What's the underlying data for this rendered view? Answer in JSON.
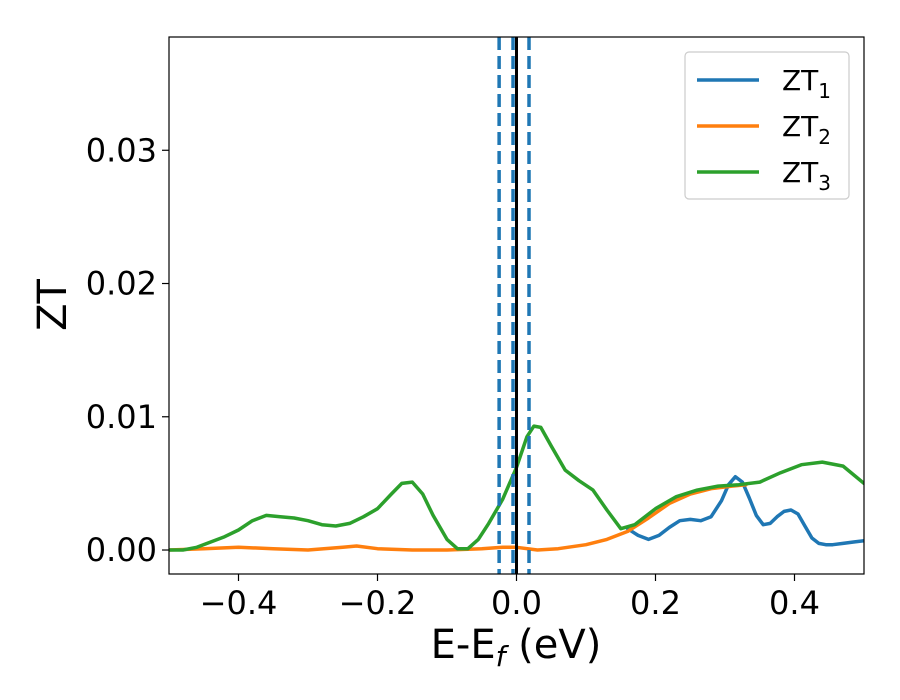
{
  "chart_data": {
    "type": "line",
    "xlabel": "E-E",
    "xlabel_sub": "f",
    "xlabel_unit": " (eV)",
    "ylabel": "ZT",
    "xlim": [
      -0.5,
      0.5
    ],
    "ylim": [
      -0.0018,
      0.0385
    ],
    "x_ticks": [
      {
        "value": -0.4,
        "label": "−0.4"
      },
      {
        "value": -0.2,
        "label": "−0.2"
      },
      {
        "value": 0.0,
        "label": "0.0"
      },
      {
        "value": 0.2,
        "label": "0.2"
      },
      {
        "value": 0.4,
        "label": "0.4"
      }
    ],
    "y_ticks": [
      {
        "value": 0.0,
        "label": "0.00"
      },
      {
        "value": 0.01,
        "label": "0.01"
      },
      {
        "value": 0.02,
        "label": "0.02"
      },
      {
        "value": 0.03,
        "label": "0.03"
      }
    ],
    "grid": false,
    "legend_position": "top-right",
    "vlines": [
      {
        "x": -0.025,
        "style": "dashed",
        "color": "#1f77b4"
      },
      {
        "x": -0.005,
        "style": "dashed",
        "color": "#1f77b4"
      },
      {
        "x": 0.0,
        "style": "solid",
        "color": "#000000"
      },
      {
        "x": 0.018,
        "style": "dashed",
        "color": "#1f77b4"
      }
    ],
    "series": [
      {
        "name": "ZT",
        "name_sub": "1",
        "color": "#1f77b4",
        "x": [
          0.16,
          0.175,
          0.19,
          0.205,
          0.22,
          0.235,
          0.25,
          0.265,
          0.28,
          0.295,
          0.305,
          0.315,
          0.325,
          0.335,
          0.345,
          0.355,
          0.365,
          0.375,
          0.385,
          0.395,
          0.405,
          0.415,
          0.425,
          0.435,
          0.445,
          0.455,
          0.47,
          0.485,
          0.5
        ],
        "y": [
          0.0016,
          0.0011,
          0.0008,
          0.0011,
          0.0017,
          0.0022,
          0.0023,
          0.0022,
          0.0025,
          0.0037,
          0.0049,
          0.0055,
          0.0051,
          0.0039,
          0.0026,
          0.0019,
          0.002,
          0.0025,
          0.0029,
          0.003,
          0.0027,
          0.0018,
          0.0009,
          0.0005,
          0.0004,
          0.0004,
          0.0005,
          0.0006,
          0.0007
        ]
      },
      {
        "name": "ZT",
        "name_sub": "2",
        "color": "#ff7f0e",
        "x": [
          -0.5,
          -0.45,
          -0.4,
          -0.35,
          -0.3,
          -0.25,
          -0.23,
          -0.2,
          -0.15,
          -0.1,
          -0.05,
          -0.02,
          0.0,
          0.03,
          0.06,
          0.1,
          0.13,
          0.16,
          0.19,
          0.22,
          0.25,
          0.28,
          0.31,
          0.33
        ],
        "y": [
          0.0,
          0.0001,
          0.0002,
          0.0001,
          0.0,
          0.0002,
          0.0003,
          0.0001,
          0.0,
          0.0,
          0.0001,
          0.0002,
          0.0002,
          0.0,
          0.0001,
          0.0004,
          0.0008,
          0.0014,
          0.0024,
          0.0035,
          0.0042,
          0.0046,
          0.0048,
          0.0049
        ]
      },
      {
        "name": "ZT",
        "name_sub": "3",
        "color": "#2ca02c",
        "x": [
          -0.5,
          -0.48,
          -0.46,
          -0.44,
          -0.42,
          -0.4,
          -0.38,
          -0.36,
          -0.34,
          -0.32,
          -0.3,
          -0.28,
          -0.26,
          -0.24,
          -0.22,
          -0.2,
          -0.18,
          -0.165,
          -0.15,
          -0.135,
          -0.12,
          -0.1,
          -0.085,
          -0.07,
          -0.055,
          -0.04,
          -0.02,
          0.0,
          0.015,
          0.025,
          0.035,
          0.05,
          0.07,
          0.09,
          0.11,
          0.13,
          0.15,
          0.17,
          0.2,
          0.23,
          0.26,
          0.29,
          0.32,
          0.35,
          0.38,
          0.41,
          0.44,
          0.47,
          0.5
        ],
        "y": [
          0.0,
          0.0,
          0.0002,
          0.0006,
          0.001,
          0.0015,
          0.0022,
          0.0026,
          0.0025,
          0.0024,
          0.0022,
          0.0019,
          0.0018,
          0.002,
          0.0025,
          0.0031,
          0.0042,
          0.005,
          0.0051,
          0.0042,
          0.0026,
          0.0008,
          0.0001,
          0.0001,
          0.0008,
          0.002,
          0.0038,
          0.0062,
          0.0085,
          0.0093,
          0.0092,
          0.0078,
          0.006,
          0.0052,
          0.0045,
          0.003,
          0.0016,
          0.0019,
          0.0031,
          0.004,
          0.0045,
          0.0048,
          0.0049,
          0.0051,
          0.0058,
          0.0064,
          0.0066,
          0.0063,
          0.005
        ]
      }
    ]
  }
}
